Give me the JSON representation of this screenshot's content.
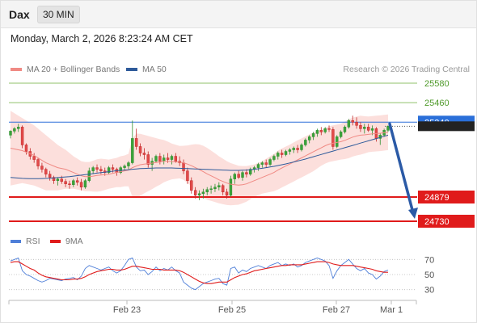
{
  "header": {
    "instrument": "Dax",
    "timeframe": "30 MIN",
    "datetime": "Monday, March 2, 2026 8:23:24 AM CET"
  },
  "legend": {
    "items": [
      {
        "label": "MA 20 + Bollinger Bands",
        "color": "#f08a84"
      },
      {
        "label": "MA 50",
        "color": "#2e5a9a"
      }
    ],
    "credit": "Research © 2026 Trading Central"
  },
  "chart_data": [
    {
      "type": "candlestick",
      "title": "",
      "x_ticks": [
        "Feb 23",
        "Feb 25",
        "Feb 27",
        "Mar 1"
      ],
      "ylim": [
        24700,
        25620
      ],
      "levels": [
        {
          "value": 25580,
          "label": "25580",
          "color": "#8fc26a",
          "kind": "resistance"
        },
        {
          "value": 25460,
          "label": "25460",
          "color": "#8fc26a",
          "kind": "resistance"
        },
        {
          "value": 25340,
          "label": "25340",
          "color": "#2a6fd9",
          "kind": "pivot"
        },
        {
          "value": 24879,
          "label": "24879",
          "color": "#e01b1b",
          "kind": "support"
        },
        {
          "value": 24730,
          "label": "24730",
          "color": "#e01b1b",
          "kind": "support"
        }
      ],
      "last_price": 25315,
      "candles": [
        [
          25260,
          25290,
          25240,
          25285
        ],
        [
          25285,
          25310,
          25270,
          25300
        ],
        [
          25300,
          25330,
          25280,
          25310
        ],
        [
          25310,
          25320,
          25180,
          25200
        ],
        [
          25200,
          25210,
          25140,
          25160
        ],
        [
          25160,
          25180,
          25110,
          25130
        ],
        [
          25130,
          25150,
          25090,
          25110
        ],
        [
          25110,
          25120,
          25050,
          25070
        ],
        [
          25070,
          25090,
          25030,
          25050
        ],
        [
          25050,
          25060,
          25000,
          25020
        ],
        [
          25020,
          25040,
          24980,
          25000
        ],
        [
          25000,
          25010,
          24960,
          24980
        ],
        [
          24980,
          25000,
          24950,
          24990
        ],
        [
          24990,
          25010,
          24960,
          24975
        ],
        [
          24975,
          24990,
          24940,
          24960
        ],
        [
          24960,
          24980,
          24930,
          24955
        ],
        [
          24955,
          24990,
          24940,
          24980
        ],
        [
          24980,
          25000,
          24950,
          24970
        ],
        [
          24970,
          24990,
          24920,
          24940
        ],
        [
          24940,
          24990,
          24930,
          24980
        ],
        [
          24980,
          25060,
          24970,
          25040
        ],
        [
          25040,
          25070,
          25020,
          25060
        ],
        [
          25060,
          25080,
          25030,
          25050
        ],
        [
          25050,
          25070,
          25020,
          25040
        ],
        [
          25040,
          25060,
          25010,
          25030
        ],
        [
          25030,
          25070,
          25020,
          25060
        ],
        [
          25060,
          25080,
          25030,
          25050
        ],
        [
          25050,
          25060,
          25010,
          25030
        ],
        [
          25030,
          25070,
          25020,
          25060
        ],
        [
          25060,
          25080,
          25040,
          25070
        ],
        [
          25070,
          25100,
          25050,
          25090
        ],
        [
          25090,
          25350,
          25080,
          25240
        ],
        [
          25240,
          25300,
          25170,
          25190
        ],
        [
          25190,
          25210,
          25130,
          25150
        ],
        [
          25150,
          25180,
          25110,
          25140
        ],
        [
          25140,
          25160,
          25060,
          25080
        ],
        [
          25080,
          25120,
          25040,
          25100
        ],
        [
          25100,
          25140,
          25090,
          25130
        ],
        [
          25130,
          25150,
          25080,
          25100
        ],
        [
          25100,
          25140,
          25080,
          25120
        ],
        [
          25120,
          25150,
          25090,
          25110
        ],
        [
          25110,
          25140,
          25080,
          25130
        ],
        [
          25130,
          25150,
          25090,
          25100
        ],
        [
          25100,
          25130,
          25070,
          25090
        ],
        [
          25090,
          25110,
          25020,
          25040
        ],
        [
          25040,
          25060,
          24960,
          24980
        ],
        [
          24980,
          25000,
          24900,
          24920
        ],
        [
          24920,
          24940,
          24870,
          24890
        ],
        [
          24890,
          24920,
          24860,
          24900
        ],
        [
          24900,
          24930,
          24870,
          24910
        ],
        [
          24910,
          24940,
          24890,
          24925
        ],
        [
          24925,
          24950,
          24900,
          24930
        ],
        [
          24930,
          24960,
          24910,
          24940
        ],
        [
          24940,
          24970,
          24920,
          24950
        ],
        [
          24950,
          24960,
          24890,
          24910
        ],
        [
          24910,
          24930,
          24870,
          24890
        ],
        [
          24890,
          25010,
          24880,
          24990
        ],
        [
          24990,
          25030,
          24960,
          25020
        ],
        [
          25020,
          25040,
          24990,
          25000
        ],
        [
          25000,
          25040,
          24980,
          25030
        ],
        [
          25030,
          25050,
          25000,
          25020
        ],
        [
          25020,
          25060,
          25010,
          25050
        ],
        [
          25050,
          25070,
          25030,
          25060
        ],
        [
          25060,
          25090,
          25040,
          25080
        ],
        [
          25080,
          25100,
          25060,
          25090
        ],
        [
          25090,
          25110,
          25060,
          25080
        ],
        [
          25080,
          25120,
          25070,
          25110
        ],
        [
          25110,
          25140,
          25100,
          25130
        ],
        [
          25130,
          25160,
          25110,
          25150
        ],
        [
          25150,
          25170,
          25120,
          25140
        ],
        [
          25140,
          25170,
          25130,
          25160
        ],
        [
          25160,
          25180,
          25140,
          25170
        ],
        [
          25170,
          25190,
          25150,
          25180
        ],
        [
          25180,
          25200,
          25150,
          25170
        ],
        [
          25170,
          25210,
          25160,
          25200
        ],
        [
          25200,
          25240,
          25190,
          25230
        ],
        [
          25230,
          25260,
          25210,
          25250
        ],
        [
          25250,
          25280,
          25230,
          25270
        ],
        [
          25270,
          25300,
          25250,
          25290
        ],
        [
          25290,
          25310,
          25260,
          25280
        ],
        [
          25280,
          25310,
          25270,
          25300
        ],
        [
          25300,
          25320,
          25280,
          25295
        ],
        [
          25295,
          25310,
          25170,
          25190
        ],
        [
          25190,
          25260,
          25180,
          25250
        ],
        [
          25250,
          25290,
          25240,
          25280
        ],
        [
          25280,
          25320,
          25270,
          25310
        ],
        [
          25310,
          25360,
          25300,
          25350
        ],
        [
          25350,
          25380,
          25320,
          25340
        ],
        [
          25340,
          25370,
          25300,
          25320
        ],
        [
          25320,
          25340,
          25280,
          25300
        ],
        [
          25300,
          25330,
          25270,
          25310
        ],
        [
          25310,
          25330,
          25280,
          25290
        ],
        [
          25290,
          25320,
          25260,
          25300
        ],
        [
          25300,
          25310,
          25220,
          25240
        ],
        [
          25240,
          25270,
          25200,
          25260
        ],
        [
          25260,
          25300,
          25250,
          25290
        ],
        [
          25290,
          25320,
          25280,
          25315
        ]
      ],
      "ma20": [
        25180,
        25175,
        25170,
        25165,
        25155,
        25145,
        25135,
        25120,
        25105,
        25090,
        25080,
        25070,
        25060,
        25055,
        25050,
        25040,
        25030,
        25020,
        25010,
        25005,
        25005,
        25008,
        25012,
        25015,
        25018,
        25020,
        25025,
        25030,
        25035,
        25040,
        25045,
        25060,
        25070,
        25078,
        25082,
        25085,
        25088,
        25092,
        25095,
        25100,
        25100,
        25098,
        25096,
        25094,
        25090,
        25082,
        25072,
        25060,
        25048,
        25035,
        25022,
        25010,
        24998,
        24985,
        24975,
        24965,
        24958,
        24955,
        24952,
        24955,
        24960,
        24970,
        24980,
        24990,
        25000,
        25010,
        25020,
        25030,
        25045,
        25058,
        25070,
        25082,
        25095,
        25108,
        25120,
        25132,
        25145,
        25158,
        25170,
        25182,
        25195,
        25205,
        25210,
        25215,
        25220,
        25228,
        25238,
        25248,
        25255,
        25260,
        25262,
        25265,
        25268,
        25270,
        25272,
        25275,
        25278
      ],
      "ma50": [
        25000,
        24998,
        24996,
        24994,
        24993,
        24992,
        24992,
        24992,
        24993,
        24994,
        24995,
        24997,
        24999,
        25001,
        25003,
        25005,
        25008,
        25011,
        25014,
        25017,
        25020,
        25023,
        25026,
        25029,
        25032,
        25035,
        25038,
        25041,
        25043,
        25045,
        25047,
        25050,
        25052,
        25054,
        25055,
        25056,
        25057,
        25058,
        25058,
        25058,
        25058,
        25058,
        25057,
        25056,
        25055,
        25054,
        25053,
        25052,
        25051,
        25050,
        25049,
        25048,
        25047,
        25046,
        25045,
        25044,
        25043,
        25043,
        25043,
        25044,
        25045,
        25047,
        25050,
        25053,
        25056,
        25060,
        25064,
        25068,
        25073,
        25078,
        25083,
        25089,
        25095,
        25101,
        25107,
        25113,
        25120,
        25127,
        25134,
        25141,
        25148,
        25155,
        25162,
        25169,
        25176,
        25183,
        25190,
        25197,
        25204,
        25211,
        25218,
        25225,
        25232,
        25239,
        25246,
        25253,
        25260
      ],
      "bb_width": [
        230,
        220,
        210,
        200,
        195,
        190,
        185,
        180,
        175,
        170,
        160,
        150,
        140,
        130,
        120,
        110,
        100,
        95,
        90,
        90,
        90,
        95,
        100,
        100,
        95,
        90,
        90,
        90,
        95,
        95,
        100,
        180,
        200,
        190,
        180,
        170,
        160,
        150,
        140,
        130,
        120,
        110,
        105,
        100,
        105,
        115,
        130,
        145,
        155,
        160,
        160,
        155,
        150,
        145,
        140,
        135,
        130,
        125,
        120,
        115,
        110,
        105,
        100,
        100,
        100,
        105,
        110,
        115,
        120,
        120,
        120,
        120,
        120,
        120,
        120,
        120,
        120,
        120,
        115,
        110,
        110,
        110,
        110,
        110,
        110,
        115,
        120,
        120,
        120,
        120,
        115,
        110,
        110,
        110,
        110,
        110,
        110
      ]
    },
    {
      "type": "line",
      "title": "",
      "legend": [
        "RSI",
        "9MA"
      ],
      "ylim": [
        20,
        80
      ],
      "y_ticks": [
        70,
        50,
        30
      ],
      "series": [
        {
          "name": "RSI",
          "color": "#4f7fd8",
          "values": [
            68,
            70,
            72,
            55,
            50,
            48,
            45,
            42,
            40,
            42,
            45,
            44,
            43,
            42,
            44,
            45,
            46,
            43,
            48,
            58,
            62,
            60,
            58,
            56,
            58,
            60,
            55,
            52,
            55,
            62,
            70,
            72,
            60,
            55,
            56,
            50,
            54,
            60,
            55,
            58,
            56,
            60,
            55,
            52,
            40,
            36,
            32,
            30,
            34,
            38,
            40,
            42,
            44,
            45,
            38,
            36,
            58,
            60,
            52,
            56,
            54,
            58,
            60,
            62,
            60,
            58,
            62,
            64,
            66,
            62,
            64,
            62,
            64,
            60,
            62,
            66,
            68,
            70,
            72,
            70,
            68,
            62,
            45,
            55,
            62,
            66,
            70,
            64,
            58,
            55,
            58,
            52,
            50,
            44,
            48,
            54,
            56
          ]
        },
        {
          "name": "9MA",
          "color": "#e01b1b",
          "values": [
            66,
            67,
            67,
            64,
            61,
            58,
            56,
            52,
            49,
            47,
            46,
            45,
            44,
            43,
            43,
            43,
            44,
            44,
            45,
            47,
            50,
            52,
            54,
            55,
            56,
            57,
            57,
            56,
            56,
            57,
            59,
            61,
            61,
            60,
            59,
            58,
            57,
            57,
            57,
            56,
            56,
            56,
            56,
            55,
            53,
            50,
            47,
            44,
            41,
            39,
            38,
            38,
            39,
            40,
            40,
            40,
            43,
            46,
            48,
            50,
            51,
            53,
            55,
            56,
            57,
            58,
            59,
            60,
            61,
            62,
            62,
            63,
            63,
            63,
            63,
            64,
            65,
            66,
            67,
            67,
            67,
            66,
            64,
            63,
            62,
            62,
            62,
            62,
            61,
            60,
            59,
            58,
            57,
            55,
            54,
            53,
            53
          ]
        }
      ]
    }
  ]
}
